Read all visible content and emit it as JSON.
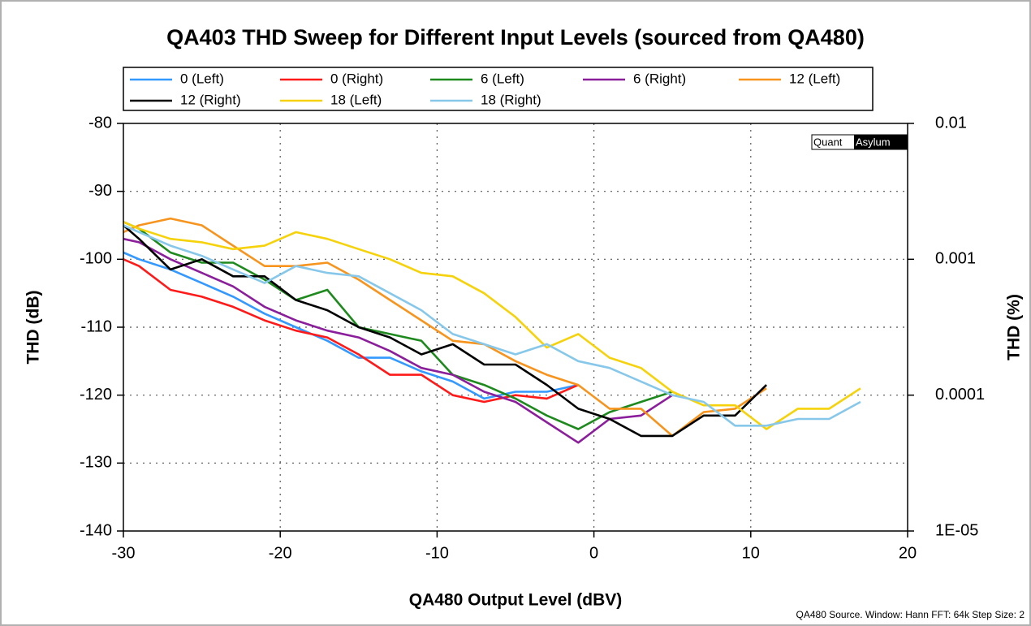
{
  "chart_data": {
    "type": "line",
    "title": "QA403 THD Sweep for Different Input Levels (sourced from QA480)",
    "xlabel": "QA480 Output Level (dBV)",
    "ylabel": "THD (dB)",
    "y2label": "THD (%)",
    "watermark": {
      "left": "Quant",
      "right": "Asylum"
    },
    "note": "QA480 Source. Window: Hann FFT: 64k Step Size: 2",
    "xlim": [
      -30,
      20
    ],
    "xticks": [
      -30,
      -20,
      -10,
      0,
      10,
      20
    ],
    "ylim": [
      -140,
      -80
    ],
    "yticks": [
      -140,
      -130,
      -120,
      -110,
      -100,
      -90,
      -80
    ],
    "y2lim": [
      1e-05,
      0.01
    ],
    "y2log": true,
    "y2ticks": [
      {
        "value": 1e-05,
        "label": "1E-05"
      },
      0.0001,
      0.001,
      0.01
    ],
    "grid": true,
    "legend": "top",
    "series": [
      {
        "name": "0 (Left)",
        "color": "#3399ff",
        "x": [
          -30,
          -29,
          -27,
          -25,
          -23,
          -21,
          -19,
          -17,
          -15,
          -13,
          -11,
          -9,
          -7,
          -5,
          -3,
          -1
        ],
        "values": [
          -99,
          -100,
          -101.5,
          -103.5,
          -105.5,
          -108,
          -110,
          -112,
          -114.5,
          -114.5,
          -116.5,
          -118,
          -120.5,
          -119.5,
          -119.5,
          -118.5
        ]
      },
      {
        "name": "0 (Right)",
        "color": "#ff1a1a",
        "x": [
          -30,
          -29,
          -27,
          -25,
          -23,
          -21,
          -19,
          -17,
          -15,
          -13,
          -11,
          -9,
          -7,
          -5,
          -3,
          -1
        ],
        "values": [
          -100,
          -101,
          -104.5,
          -105.5,
          -107,
          -109,
          -110.5,
          -111.5,
          -114,
          -117,
          -117,
          -120,
          -121,
          -120,
          -120.5,
          -118.5
        ]
      },
      {
        "name": "6 (Left)",
        "color": "#1e8a1e",
        "x": [
          -30,
          -29,
          -27,
          -25,
          -23,
          -21,
          -19,
          -17,
          -15,
          -13,
          -11,
          -9,
          -7,
          -5,
          -3,
          -1,
          1,
          3,
          5
        ],
        "values": [
          -94.5,
          -95.5,
          -99,
          -100.5,
          -100.5,
          -103,
          -106,
          -104.5,
          -110,
          -111,
          -112,
          -117,
          -118.5,
          -120.5,
          -123,
          -125,
          -122.5,
          -121,
          -119.5
        ]
      },
      {
        "name": "6 (Right)",
        "color": "#8b1f9b",
        "x": [
          -30,
          -29,
          -27,
          -25,
          -23,
          -21,
          -19,
          -17,
          -15,
          -13,
          -11,
          -9,
          -7,
          -5,
          -3,
          -1,
          1,
          3,
          5
        ],
        "values": [
          -97,
          -97.5,
          -100,
          -102,
          -104,
          -107,
          -109,
          -110.5,
          -111.5,
          -113.5,
          -116,
          -117,
          -119.5,
          -121,
          -124,
          -127,
          -123.5,
          -123,
          -120
        ]
      },
      {
        "name": "12 (Left)",
        "color": "#f7941d",
        "x": [
          -30,
          -29,
          -27,
          -25,
          -23,
          -21,
          -19,
          -17,
          -15,
          -13,
          -11,
          -9,
          -7,
          -5,
          -3,
          -1,
          1,
          3,
          5,
          7,
          9,
          11
        ],
        "values": [
          -96,
          -95,
          -94,
          -95,
          -98,
          -101,
          -101,
          -100.5,
          -103,
          -106,
          -109,
          -112,
          -112.5,
          -115,
          -117,
          -118.5,
          -122,
          -122,
          -126,
          -122.5,
          -122,
          -119
        ]
      },
      {
        "name": "12 (Right)",
        "color": "#000000",
        "x": [
          -30,
          -29,
          -27,
          -25,
          -23,
          -21,
          -19,
          -17,
          -15,
          -13,
          -11,
          -9,
          -7,
          -5,
          -3,
          -1,
          1,
          3,
          5,
          7,
          9,
          11
        ],
        "values": [
          -95,
          -97,
          -101.5,
          -100,
          -102.5,
          -102.5,
          -106,
          -107.5,
          -110,
          -111.5,
          -114,
          -112.5,
          -115.5,
          -115.5,
          -118.5,
          -122,
          -123.5,
          -126,
          -126,
          -123,
          -123,
          -118.5
        ]
      },
      {
        "name": "18 (Left)",
        "color": "#f5d20a",
        "x": [
          -30,
          -29,
          -27,
          -25,
          -23,
          -21,
          -19,
          -17,
          -15,
          -13,
          -11,
          -9,
          -7,
          -5,
          -3,
          -1,
          1,
          3,
          5,
          7,
          9,
          11,
          13,
          15,
          17
        ],
        "values": [
          -94.5,
          -95.5,
          -97,
          -97.5,
          -98.5,
          -98,
          -96,
          -97,
          -98.5,
          -100,
          -102,
          -102.5,
          -105,
          -108.5,
          -113,
          -111,
          -114.5,
          -116,
          -119.5,
          -121.5,
          -121.5,
          -125,
          -122,
          -122,
          -119
        ]
      },
      {
        "name": "18 (Right)",
        "color": "#87c8ea",
        "x": [
          -30,
          -29,
          -27,
          -25,
          -23,
          -21,
          -19,
          -17,
          -15,
          -13,
          -11,
          -9,
          -7,
          -5,
          -3,
          -1,
          1,
          3,
          5,
          7,
          9,
          11,
          13,
          15,
          17
        ],
        "values": [
          -95,
          -96,
          -98,
          -99.5,
          -101.5,
          -103.5,
          -101,
          -102,
          -102.5,
          -105,
          -107.5,
          -111,
          -112.5,
          -114,
          -112.5,
          -115,
          -116,
          -118,
          -120,
          -121,
          -124.5,
          -124.5,
          -123.5,
          -123.5,
          -121
        ]
      }
    ]
  }
}
